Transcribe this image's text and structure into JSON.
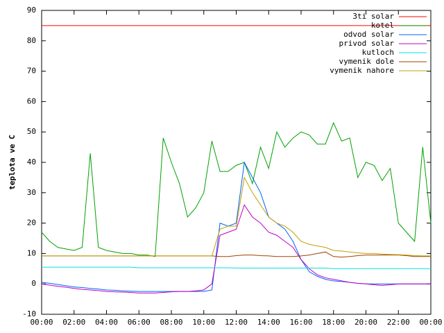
{
  "chart_data": {
    "type": "line",
    "ylabel": "teplota ve C",
    "x": [
      0,
      0.5,
      1,
      1.5,
      2,
      2.5,
      3,
      3.5,
      4,
      4.5,
      5,
      5.5,
      6,
      6.5,
      7,
      7.5,
      8,
      8.5,
      9,
      9.5,
      10,
      10.5,
      11,
      11.5,
      12,
      12.5,
      13,
      13.5,
      14,
      14.5,
      15,
      15.5,
      16,
      16.5,
      17,
      17.5,
      18,
      18.5,
      19,
      19.5,
      20,
      20.5,
      21,
      21.5,
      22,
      22.5,
      23,
      23.5,
      24
    ],
    "xlim": [
      0,
      24
    ],
    "xticks": [
      {
        "value": 0,
        "label": "00:00"
      },
      {
        "value": 2,
        "label": "02:00"
      },
      {
        "value": 4,
        "label": "04:00"
      },
      {
        "value": 6,
        "label": "06:00"
      },
      {
        "value": 8,
        "label": "08:00"
      },
      {
        "value": 10,
        "label": "10:00"
      },
      {
        "value": 12,
        "label": "12:00"
      },
      {
        "value": 14,
        "label": "14:00"
      },
      {
        "value": 16,
        "label": "16:00"
      },
      {
        "value": 18,
        "label": "18:00"
      },
      {
        "value": 20,
        "label": "20:00"
      },
      {
        "value": 22,
        "label": "22:00"
      },
      {
        "value": 24,
        "label": "00:00"
      }
    ],
    "ylim": [
      -10,
      90
    ],
    "yticks": [
      -10,
      0,
      10,
      20,
      30,
      40,
      50,
      60,
      70,
      80,
      90
    ],
    "legend": "top-right",
    "series": [
      {
        "name": "3ti solar",
        "color": "#ff0000",
        "values": [
          85,
          85,
          85,
          85,
          85,
          85,
          85,
          85,
          85,
          85,
          85,
          85,
          85,
          85,
          85,
          85,
          85,
          85,
          85,
          85,
          85,
          85,
          85,
          85,
          85,
          85,
          85,
          85,
          85,
          85,
          85,
          85,
          85,
          85,
          85,
          85,
          85,
          85,
          85,
          85,
          85,
          85,
          85,
          85,
          85,
          85,
          85,
          85,
          85
        ]
      },
      {
        "name": "kotel",
        "color": "#00a000",
        "values": [
          17,
          14,
          12,
          11.5,
          11,
          12,
          43,
          12,
          11,
          10.5,
          10,
          10,
          9.5,
          9.5,
          9,
          48,
          40,
          33,
          22,
          25,
          30,
          47,
          37,
          37,
          39,
          40,
          33,
          45,
          38,
          50,
          45,
          48,
          50,
          49,
          46,
          46,
          53,
          47,
          48,
          35,
          40,
          39,
          34,
          38,
          20,
          17,
          14,
          45,
          20
        ]
      },
      {
        "name": "odvod solar",
        "color": "#0060ff",
        "values": [
          0.5,
          0.2,
          -0.2,
          -0.6,
          -1,
          -1.2,
          -1.5,
          -1.7,
          -2,
          -2.1,
          -2.3,
          -2.4,
          -2.5,
          -2.5,
          -2.5,
          -2.5,
          -2.5,
          -2.5,
          -2.5,
          -2.5,
          -2.5,
          -2,
          20,
          19,
          20,
          40,
          35,
          30,
          22,
          20,
          18,
          14,
          8,
          4,
          2.5,
          1.5,
          1,
          0.8,
          0.5,
          0.2,
          0,
          0,
          0,
          0,
          0,
          0,
          0,
          0,
          0
        ]
      },
      {
        "name": "privod solar",
        "color": "#c000c0",
        "values": [
          0,
          -0.4,
          -0.8,
          -1.1,
          -1.5,
          -1.8,
          -2,
          -2.2,
          -2.5,
          -2.6,
          -2.7,
          -2.8,
          -3,
          -3,
          -3,
          -2.8,
          -2.6,
          -2.5,
          -2.5,
          -2.3,
          -2,
          0,
          16,
          17,
          18,
          26,
          22,
          20,
          17,
          16,
          14,
          12,
          8,
          5,
          3,
          2,
          1.5,
          1,
          0.5,
          0.2,
          0,
          -0.3,
          -0.5,
          -0.3,
          0,
          0,
          0,
          0,
          0
        ]
      },
      {
        "name": "kutloch",
        "color": "#00e0e0",
        "values": [
          5.5,
          5.5,
          5.5,
          5.5,
          5.5,
          5.5,
          5.5,
          5.5,
          5.5,
          5.5,
          5.5,
          5.5,
          5.3,
          5.3,
          5.3,
          5.3,
          5.3,
          5.3,
          5.3,
          5.3,
          5.3,
          5.3,
          5.3,
          5.3,
          5.2,
          5.2,
          5.2,
          5.2,
          5.2,
          5.2,
          5.2,
          5.2,
          5.2,
          5.2,
          5.2,
          5.2,
          5,
          5,
          5,
          5,
          5,
          5,
          5,
          5,
          5,
          5,
          5,
          5,
          5
        ]
      },
      {
        "name": "vymenik dole",
        "color": "#a04000",
        "values": [
          9.2,
          9.2,
          9.2,
          9.2,
          9.2,
          9.2,
          9.2,
          9.2,
          9.2,
          9.2,
          9.2,
          9.2,
          9.2,
          9.2,
          9.2,
          9.2,
          9.2,
          9.2,
          9.2,
          9.2,
          9.2,
          9.2,
          9,
          9,
          9.3,
          9.5,
          9.5,
          9.3,
          9.2,
          9,
          9,
          9,
          9.2,
          9.5,
          10,
          10.5,
          9,
          8.8,
          9,
          9.3,
          9.5,
          9.5,
          9.5,
          9.5,
          9.5,
          9.3,
          9,
          9,
          9
        ]
      },
      {
        "name": "vymenik nahore",
        "color": "#c0a000",
        "values": [
          9.2,
          9.2,
          9.2,
          9.2,
          9.2,
          9.2,
          9.2,
          9.2,
          9.2,
          9.2,
          9.2,
          9.2,
          9.2,
          9.2,
          9.2,
          9.2,
          9.2,
          9.2,
          9.2,
          9.2,
          9.2,
          9.2,
          18,
          19,
          19,
          35,
          30,
          26,
          22,
          20,
          19,
          17,
          14,
          13,
          12.5,
          12,
          11,
          10.8,
          10.5,
          10.2,
          10,
          10,
          9.8,
          9.7,
          9.6,
          9.5,
          9.3,
          9.2,
          9.2
        ]
      }
    ]
  }
}
